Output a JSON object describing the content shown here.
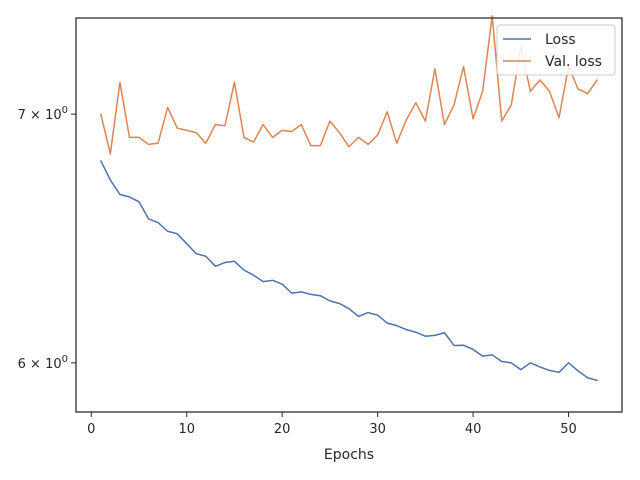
{
  "chart_data": {
    "type": "line",
    "title": "",
    "xlabel": "Epochs",
    "ylabel": "",
    "yscale": "log",
    "xlim": [
      -1.6,
      55.6
    ],
    "ylim": [
      5.82,
      7.43
    ],
    "xticks": [
      0,
      10,
      20,
      30,
      40,
      50
    ],
    "xtick_labels": [
      "0",
      "10",
      "20",
      "30",
      "40",
      "50"
    ],
    "yticks": [
      7.0,
      6.0
    ],
    "ytick_labels": [
      {
        "base": "7",
        "mult": "×",
        "exp_base": "10",
        "exp": "0"
      },
      {
        "base": "6",
        "mult": "×",
        "exp_base": "10",
        "exp": "0"
      }
    ],
    "legend_placement": "upper-right",
    "grid": false,
    "x": [
      1,
      2,
      3,
      4,
      5,
      6,
      7,
      8,
      9,
      10,
      11,
      12,
      13,
      14,
      15,
      16,
      17,
      18,
      19,
      20,
      21,
      22,
      23,
      24,
      25,
      26,
      27,
      28,
      29,
      30,
      31,
      32,
      33,
      34,
      35,
      36,
      37,
      38,
      39,
      40,
      41,
      42,
      43,
      44,
      45,
      46,
      47,
      48,
      49,
      50,
      51,
      52,
      53
    ],
    "series": [
      {
        "name": "Loss",
        "color": "#4c72b0",
        "values": [
          6.8,
          6.72,
          6.66,
          6.65,
          6.63,
          6.56,
          6.545,
          6.51,
          6.5,
          6.46,
          6.42,
          6.41,
          6.37,
          6.385,
          6.39,
          6.355,
          6.335,
          6.31,
          6.315,
          6.3,
          6.265,
          6.27,
          6.26,
          6.255,
          6.235,
          6.225,
          6.205,
          6.175,
          6.19,
          6.18,
          6.15,
          6.14,
          6.125,
          6.115,
          6.1,
          6.103,
          6.113,
          6.065,
          6.066,
          6.05,
          6.025,
          6.03,
          6.005,
          6.0,
          5.975,
          6.0,
          5.985,
          5.972,
          5.965,
          6.0,
          5.97,
          5.945,
          5.935
        ]
      },
      {
        "name": "Val. loss",
        "color": "#dd8452",
        "values": [
          7.0,
          6.83,
          7.14,
          6.9,
          6.9,
          6.87,
          6.875,
          7.03,
          6.94,
          6.93,
          6.92,
          6.875,
          6.955,
          6.95,
          7.14,
          6.9,
          6.88,
          6.955,
          6.9,
          6.93,
          6.925,
          6.955,
          6.865,
          6.865,
          6.97,
          6.92,
          6.86,
          6.9,
          6.87,
          6.91,
          7.01,
          6.875,
          6.975,
          7.05,
          6.97,
          7.2,
          6.955,
          7.04,
          7.21,
          6.98,
          7.1,
          7.44,
          6.97,
          7.04,
          7.3,
          7.1,
          7.15,
          7.1,
          6.985,
          7.21,
          7.11,
          7.09,
          7.15
        ]
      }
    ]
  }
}
